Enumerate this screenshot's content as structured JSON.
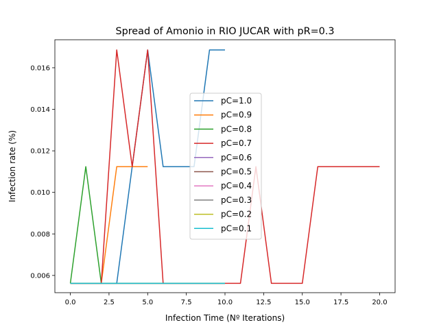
{
  "chart_data": {
    "type": "line",
    "title": "Spread of Amonio in RIO JUCAR with pR=0.3",
    "xlabel": "Infection Time (Nº Iterations)",
    "ylabel": "Infection rate (%)",
    "xlim": [
      -1.0,
      21.0
    ],
    "ylim": [
      0.00517,
      0.01735
    ],
    "xticks": [
      0.0,
      2.5,
      5.0,
      7.5,
      10.0,
      12.5,
      15.0,
      17.5,
      20.0
    ],
    "xtick_labels": [
      "0.0",
      "2.5",
      "5.0",
      "7.5",
      "10.0",
      "12.5",
      "15.0",
      "17.5",
      "20.0"
    ],
    "yticks": [
      0.006,
      0.008,
      0.01,
      0.012,
      0.014,
      0.016
    ],
    "ytick_labels": [
      "0.006",
      "0.008",
      "0.010",
      "0.012",
      "0.014",
      "0.016"
    ],
    "grid": false,
    "legend_position": "center",
    "series": [
      {
        "name": "pC=1.0",
        "color": "#1f77b4",
        "x": [
          0,
          1,
          2,
          3,
          4,
          5,
          6,
          7,
          8,
          9,
          10
        ],
        "y": [
          0.00562,
          0.00562,
          0.00562,
          0.00562,
          0.01124,
          0.01686,
          0.01124,
          0.01124,
          0.01124,
          0.01686,
          0.01686
        ]
      },
      {
        "name": "pC=0.9",
        "color": "#ff7f0e",
        "x": [
          0,
          1,
          2,
          3,
          4,
          5
        ],
        "y": [
          0.00562,
          0.00562,
          0.00562,
          0.01124,
          0.01124,
          0.01124
        ]
      },
      {
        "name": "pC=0.8",
        "color": "#2ca02c",
        "x": [
          0,
          1,
          2
        ],
        "y": [
          0.00562,
          0.01124,
          0.00562
        ]
      },
      {
        "name": "pC=0.7",
        "color": "#d62728",
        "x": [
          0,
          1,
          2,
          3,
          4,
          5,
          6,
          7,
          8,
          9,
          10,
          11,
          12,
          13,
          14,
          15,
          16,
          17,
          18,
          19,
          20
        ],
        "y": [
          0.00562,
          0.00562,
          0.00562,
          0.01686,
          0.01124,
          0.01686,
          0.00562,
          0.00562,
          0.00562,
          0.00562,
          0.00562,
          0.00562,
          0.01124,
          0.00562,
          0.00562,
          0.00562,
          0.01124,
          0.01124,
          0.01124,
          0.01124,
          0.01124
        ]
      },
      {
        "name": "pC=0.6",
        "color": "#9467bd",
        "x": [
          0,
          1,
          2,
          3,
          4,
          5,
          6,
          7,
          8,
          9,
          10
        ],
        "y": [
          0.00562,
          0.00562,
          0.00562,
          0.00562,
          0.00562,
          0.00562,
          0.00562,
          0.00562,
          0.00562,
          0.00562,
          0.00562
        ]
      },
      {
        "name": "pC=0.5",
        "color": "#8c564b",
        "x": [
          0,
          1,
          2,
          3,
          4,
          5,
          6,
          7,
          8,
          9,
          10
        ],
        "y": [
          0.00562,
          0.00562,
          0.00562,
          0.00562,
          0.00562,
          0.00562,
          0.00562,
          0.00562,
          0.00562,
          0.00562,
          0.00562
        ]
      },
      {
        "name": "pC=0.4",
        "color": "#e377c2",
        "x": [
          0,
          1,
          2,
          3,
          4,
          5,
          6,
          7,
          8,
          9,
          10
        ],
        "y": [
          0.00562,
          0.00562,
          0.00562,
          0.00562,
          0.00562,
          0.00562,
          0.00562,
          0.00562,
          0.00562,
          0.00562,
          0.00562
        ]
      },
      {
        "name": "pC=0.3",
        "color": "#7f7f7f",
        "x": [
          0,
          1,
          2,
          3,
          4,
          5,
          6,
          7,
          8,
          9,
          10
        ],
        "y": [
          0.00562,
          0.00562,
          0.00562,
          0.00562,
          0.00562,
          0.00562,
          0.00562,
          0.00562,
          0.00562,
          0.00562,
          0.00562
        ]
      },
      {
        "name": "pC=0.2",
        "color": "#bcbd22",
        "x": [
          0,
          1,
          2,
          3,
          4,
          5,
          6,
          7,
          8,
          9,
          10
        ],
        "y": [
          0.00562,
          0.00562,
          0.00562,
          0.00562,
          0.00562,
          0.00562,
          0.00562,
          0.00562,
          0.00562,
          0.00562,
          0.00562
        ]
      },
      {
        "name": "pC=0.1",
        "color": "#17becf",
        "x": [
          0,
          1,
          2,
          3,
          4,
          5,
          6,
          7,
          8,
          9,
          10
        ],
        "y": [
          0.00562,
          0.00562,
          0.00562,
          0.00562,
          0.00562,
          0.00562,
          0.00562,
          0.00562,
          0.00562,
          0.00562,
          0.00562
        ]
      }
    ]
  }
}
